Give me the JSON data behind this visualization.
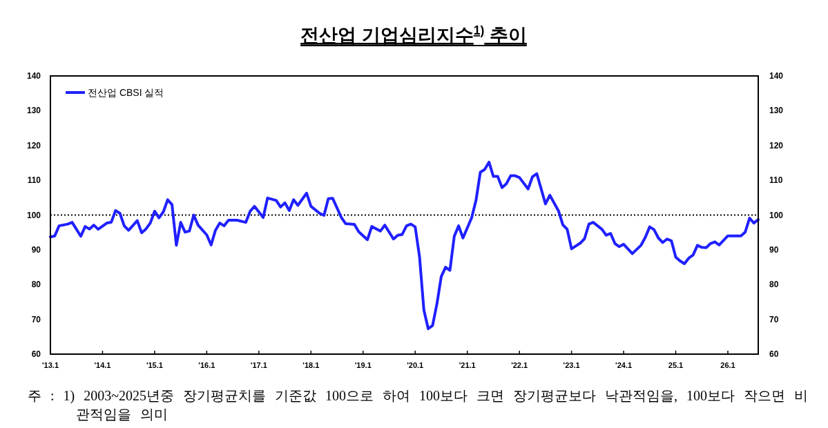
{
  "chart_data": {
    "type": "line",
    "title": "전산업 기업심리지수$^{1)}$ 추이",
    "x": [
      "2013-01",
      "2013-02",
      "2013-03",
      "2013-05",
      "2013-06",
      "2013-08",
      "2013-09",
      "2013-10",
      "2013-11",
      "2013-12",
      "2014-02",
      "2014-03",
      "2014-04",
      "2014-05",
      "2014-06",
      "2014-07",
      "2014-09",
      "2014-10",
      "2014-11",
      "2014-12",
      "2015-01",
      "2015-02",
      "2015-03",
      "2015-04",
      "2015-05",
      "2015-06",
      "2015-07",
      "2015-08",
      "2015-09",
      "2015-10",
      "2015-11",
      "2016-01",
      "2016-02",
      "2016-03",
      "2016-04",
      "2016-05",
      "2016-06",
      "2016-08",
      "2016-10",
      "2016-11",
      "2016-12",
      "2017-02",
      "2017-03",
      "2017-05",
      "2017-06",
      "2017-07",
      "2017-08",
      "2017-09",
      "2017-10",
      "2017-12",
      "2018-01",
      "2018-03",
      "2018-04",
      "2018-05",
      "2018-06",
      "2018-08",
      "2018-09",
      "2018-11",
      "2018-12",
      "2019-02",
      "2019-03",
      "2019-05",
      "2019-06",
      "2019-08",
      "2019-09",
      "2019-10",
      "2019-11",
      "2019-12",
      "2020-01",
      "2020-02",
      "2020-03",
      "2020-04",
      "2020-05",
      "2020-06",
      "2020-07",
      "2020-08",
      "2020-09",
      "2020-10",
      "2020-11",
      "2020-12",
      "2021-02",
      "2021-03",
      "2021-04",
      "2021-05",
      "2021-06",
      "2021-07",
      "2021-08",
      "2021-09",
      "2021-10",
      "2021-11",
      "2021-12",
      "2022-01",
      "2022-03",
      "2022-04",
      "2022-05",
      "2022-07",
      "2022-08",
      "2022-10",
      "2022-11",
      "2022-12",
      "2023-01",
      "2023-03",
      "2023-04",
      "2023-05",
      "2023-06",
      "2023-08",
      "2023-09",
      "2023-10",
      "2023-11",
      "2023-12",
      "2024-01",
      "2024-03",
      "2024-05",
      "2024-06",
      "2024-07",
      "2024-08",
      "2024-09",
      "2024-10",
      "2024-11",
      "2024-12",
      "2025-01",
      "2025-02",
      "2025-03",
      "2025-04",
      "2025-05",
      "2025-06",
      "2025-07",
      "2025-08",
      "2025-09",
      "2025-10",
      "2025-11",
      "2026-01",
      "2026-02",
      "2026-04",
      "2026-05",
      "2026-06",
      "2026-07",
      "2026-08"
    ],
    "series": [
      {
        "name": "전산업 CBSI 실적",
        "color": "#2020ff",
        "values": [
          93.7,
          94.0,
          96.9,
          97.4,
          97.9,
          93.9,
          96.7,
          96.0,
          97.1,
          95.9,
          97.7,
          97.9,
          101.3,
          100.5,
          96.9,
          95.6,
          98.4,
          94.9,
          96.0,
          97.7,
          101.1,
          99.2,
          100.9,
          104.4,
          103.0,
          91.3,
          97.9,
          95.1,
          95.4,
          100.0,
          97.1,
          94.3,
          91.4,
          95.6,
          97.7,
          96.9,
          98.5,
          98.5,
          97.9,
          101.1,
          102.5,
          99.3,
          104.9,
          104.2,
          102.3,
          103.5,
          101.3,
          104.4,
          102.8,
          106.3,
          102.5,
          100.5,
          99.9,
          104.7,
          104.8,
          99.3,
          97.5,
          97.3,
          95.2,
          92.9,
          96.7,
          95.4,
          97.1,
          93.1,
          94.2,
          94.4,
          96.9,
          97.4,
          96.6,
          88.0,
          72.7,
          67.3,
          68.2,
          74.4,
          82.3,
          85.0,
          84.1,
          93.9,
          96.9,
          93.4,
          99.2,
          104.2,
          112.3,
          113.1,
          115.2,
          111.1,
          111.1,
          107.9,
          109.0,
          111.3,
          111.3,
          110.8,
          107.5,
          111.0,
          111.9,
          103.2,
          105.7,
          101.2,
          97.2,
          95.9,
          90.3,
          91.9,
          93.2,
          97.4,
          97.9,
          95.9,
          94.2,
          94.7,
          91.8,
          90.9,
          91.6,
          88.9,
          91.3,
          93.6,
          96.6,
          95.8,
          93.4,
          92.1,
          93.1,
          92.6,
          87.9,
          86.8,
          86.0,
          87.6,
          88.5,
          91.3,
          90.7,
          90.6,
          91.8,
          92.3,
          91.4,
          94.0,
          94.0,
          94.0,
          95.1,
          99.1,
          97.7,
          98.7
        ]
      }
    ],
    "xlim": [
      "2013-01",
      "2026-08"
    ],
    "xticks": [
      {
        "value": "2013-01",
        "label": "'13.1"
      },
      {
        "value": "2014-01",
        "label": "'14.1"
      },
      {
        "value": "2015-01",
        "label": "'15.1"
      },
      {
        "value": "2016-01",
        "label": "'16.1"
      },
      {
        "value": "2017-01",
        "label": "'17.1"
      },
      {
        "value": "2018-01",
        "label": "'18.1"
      },
      {
        "value": "2019-01",
        "label": "'19.1"
      },
      {
        "value": "2020-01",
        "label": "'20.1"
      },
      {
        "value": "2021-01",
        "label": "'21.1"
      },
      {
        "value": "2022-01",
        "label": "'22.1"
      },
      {
        "value": "2023-01",
        "label": "'23.1"
      },
      {
        "value": "2024-01",
        "label": "'24.1"
      },
      {
        "value": "2025-01",
        "label": "25.1"
      },
      {
        "value": "2026-01",
        "label": "26.1"
      }
    ],
    "ylim": [
      60,
      140
    ],
    "yticks": [
      60,
      70,
      80,
      90,
      100,
      110,
      120,
      130,
      140
    ],
    "y2lim": [
      60,
      140
    ],
    "y2ticks": [
      60,
      70,
      80,
      90,
      100,
      110,
      120,
      130,
      140
    ],
    "ref_lines": [
      {
        "axis": "y",
        "value": 100,
        "color": "#000000",
        "line_style": "dotted"
      }
    ],
    "legend": "top left",
    "line_style": "solid",
    "annotations": [
      "주 : 1) 2003~2025년중 장기평균치를 기준값 100으로 하여 100보다 크면 장기평균보다 낙관적임을, 100보다 작으면 비관적임을 의미"
    ]
  }
}
